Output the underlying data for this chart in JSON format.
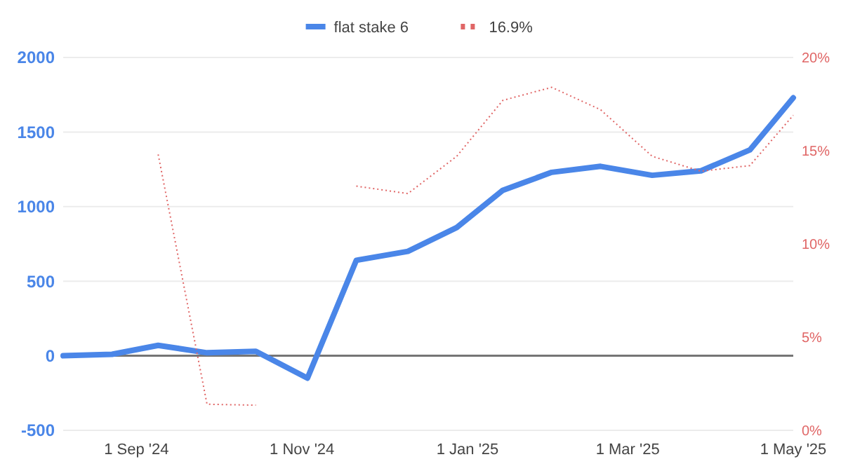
{
  "chart_data": {
    "type": "line",
    "x": [
      "2024-08-05",
      "2024-08-23",
      "2024-09-09",
      "2024-09-27",
      "2024-10-15",
      "2024-11-03",
      "2024-11-21",
      "2024-12-10",
      "2024-12-28",
      "2025-01-14",
      "2025-02-01",
      "2025-02-19",
      "2025-03-10",
      "2025-03-28",
      "2025-04-15",
      "2025-05-01"
    ],
    "series": [
      {
        "name": "flat stake 6",
        "color": "#4a86e8",
        "values": [
          0,
          10,
          70,
          20,
          30,
          -150,
          640,
          700,
          860,
          1110,
          1230,
          1270,
          1210,
          1240,
          1380,
          1730
        ]
      },
      {
        "name": "16.9%",
        "color": "#e06666",
        "axis": "y2",
        "line_style": "dotted",
        "values": [
          null,
          null,
          14.8,
          1.4,
          1.35,
          null,
          13.1,
          12.7,
          14.7,
          17.7,
          18.4,
          17.2,
          14.7,
          13.9,
          14.2,
          16.9
        ]
      }
    ],
    "xlim": [
      "2024-08-05",
      "2025-05-01"
    ],
    "xticks": [
      {
        "value": "2024-09-01",
        "label": "1 Sep '24"
      },
      {
        "value": "2024-11-01",
        "label": "1 Nov '24"
      },
      {
        "value": "2025-01-01",
        "label": "1 Jan '25"
      },
      {
        "value": "2025-03-01",
        "label": "1 Mar '25"
      },
      {
        "value": "2025-05-01",
        "label": "1 May '25"
      }
    ],
    "ylim": [
      -500,
      2000
    ],
    "yticks": [
      -500,
      0,
      500,
      1000,
      1500,
      2000
    ],
    "y2lim": [
      0,
      20
    ],
    "y2ticks": [
      {
        "value": 0,
        "label": "0%"
      },
      {
        "value": 5,
        "label": "5%"
      },
      {
        "value": 10,
        "label": "10%"
      },
      {
        "value": 15,
        "label": "15%"
      },
      {
        "value": 20,
        "label": "20%"
      }
    ],
    "ref_lines": [
      {
        "axis": "y",
        "value": 0,
        "color": "#757575"
      }
    ],
    "grid": "y",
    "legend": "top",
    "marker": "none",
    "line_style": "solid"
  }
}
